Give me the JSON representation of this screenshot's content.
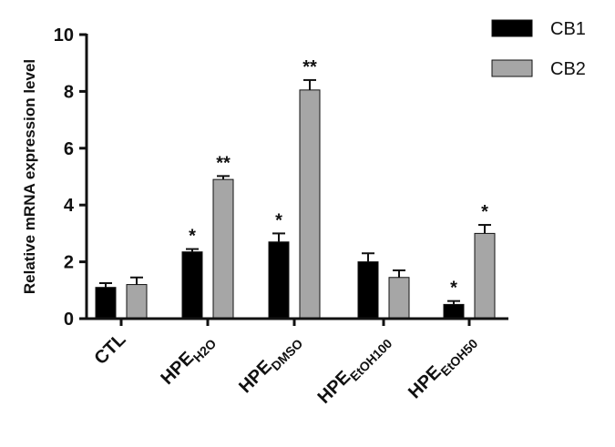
{
  "chart_data": {
    "type": "bar",
    "ylabel": "Relative mRNA expression level",
    "xlabel": "",
    "ylim": [
      0,
      10
    ],
    "yticks": [
      "0",
      "2",
      "4",
      "6",
      "8",
      "10"
    ],
    "categories": [
      {
        "main": "CTL",
        "sub": ""
      },
      {
        "main": "HPE",
        "sub": "H2O"
      },
      {
        "main": "HPE",
        "sub": "DMSO"
      },
      {
        "main": "HPE",
        "sub": "EtOH100"
      },
      {
        "main": "HPE",
        "sub": "EtOH50"
      }
    ],
    "legend_position": "top-right",
    "series": [
      {
        "name": "CB1",
        "color": "#000000",
        "values": [
          1.1,
          2.35,
          2.7,
          2.0,
          0.5
        ],
        "errors": [
          0.15,
          0.1,
          0.3,
          0.3,
          0.12
        ],
        "significance": [
          "",
          "*",
          "*",
          "",
          "*"
        ]
      },
      {
        "name": "CB2",
        "color": "#a6a6a6",
        "values": [
          1.2,
          4.9,
          8.05,
          1.45,
          3.0
        ],
        "errors": [
          0.25,
          0.12,
          0.35,
          0.25,
          0.3
        ],
        "significance": [
          "",
          "**",
          "**",
          "",
          "*"
        ]
      }
    ]
  }
}
